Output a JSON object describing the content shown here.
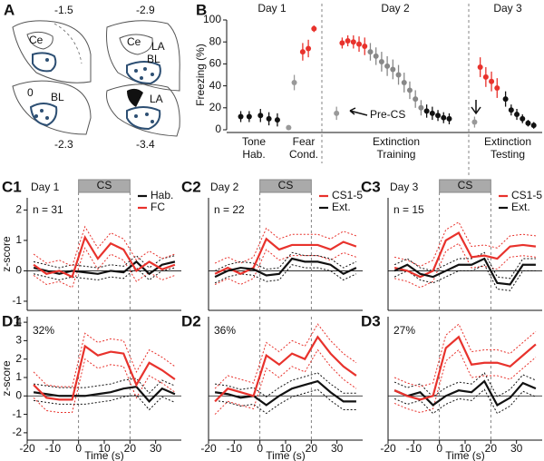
{
  "panel_a": {
    "label": "A",
    "labels": [
      "-1.5",
      "Ce",
      "-2.9",
      "Ce",
      "LA",
      "BL",
      "0",
      "BL",
      "-2.3",
      "LA",
      "-3.4"
    ]
  },
  "chart_data": [
    {
      "type": "errorbar",
      "label": "B",
      "ylabel": "Freezing (%)",
      "ylim": [
        0,
        100
      ],
      "yticks": [
        0,
        20,
        40,
        60,
        80,
        100
      ],
      "xlim": [
        0,
        56
      ],
      "annotations": [
        "Day 1",
        "Day 2",
        "Day 3",
        "Tone",
        "Hab.",
        "Fear",
        "Cond.",
        "Extinction",
        "Training",
        "Extinction",
        "Testing",
        "Pre-CS"
      ],
      "series": [
        {
          "color": "#111111",
          "x": [
            2.5,
            4,
            6,
            7.5,
            9
          ],
          "values": [
            12,
            12,
            13,
            10,
            9
          ],
          "errors": [
            5,
            5,
            6,
            6,
            6
          ]
        },
        {
          "color": "#999999",
          "x": [
            11,
            12
          ],
          "values": [
            2,
            43
          ],
          "errors": [
            1,
            7
          ]
        },
        {
          "color": "#e8322c",
          "x": [
            13.5,
            14.5,
            15.5
          ],
          "values": [
            71,
            74,
            92
          ],
          "errors": [
            8,
            8,
            3
          ]
        },
        {
          "color": "#999999",
          "x": [
            19.5
          ],
          "values": [
            15
          ],
          "errors": [
            6
          ]
        },
        {
          "color": "#e8322c",
          "x": [
            20.5,
            21.5,
            22.5,
            23.5,
            24.5
          ],
          "values": [
            79,
            81,
            80,
            78,
            76
          ],
          "errors": [
            5,
            5,
            6,
            7,
            8
          ]
        },
        {
          "color": "#888888",
          "x": [
            25.5,
            26.5,
            27.5,
            28.5,
            29.5,
            30.5,
            31.5,
            32.5,
            33.5,
            34.5
          ],
          "values": [
            71,
            67,
            62,
            58,
            55,
            50,
            43,
            36,
            28,
            20
          ],
          "errors": [
            8,
            8,
            9,
            9,
            9,
            9,
            9,
            8,
            8,
            7
          ]
        },
        {
          "color": "#111111",
          "x": [
            35.5,
            36.5,
            37.5,
            38.5,
            39.5
          ],
          "values": [
            17,
            15,
            13,
            11,
            10
          ],
          "errors": [
            6,
            6,
            5,
            5,
            5
          ]
        },
        {
          "color": "#999999",
          "x": [
            44
          ],
          "values": [
            7
          ],
          "errors": [
            5
          ]
        },
        {
          "color": "#e8322c",
          "x": [
            45,
            46,
            47,
            48
          ],
          "values": [
            57,
            48,
            44,
            38
          ],
          "errors": [
            9,
            9,
            9,
            9
          ]
        },
        {
          "color": "#111111",
          "x": [
            49.5,
            50.5,
            51.5,
            52.5,
            53.5,
            54.5
          ],
          "values": [
            28,
            18,
            14,
            10,
            6,
            4
          ],
          "errors": [
            7,
            5,
            5,
            4,
            3,
            3
          ]
        }
      ]
    },
    {
      "type": "line",
      "label": "C1",
      "title": "Day 1",
      "annotation": "n = 31",
      "cs_label": "CS",
      "cs_window": [
        0,
        20
      ],
      "ylabel": "z-score",
      "xlim": [
        -20,
        40
      ],
      "ylim": [
        -1.3,
        2.4
      ],
      "yticks": [
        -1,
        0,
        1,
        2
      ],
      "zero_line": true,
      "x": [
        -17.5,
        -12.5,
        -7.5,
        -2.5,
        2.5,
        7.5,
        12.5,
        17.5,
        22.5,
        27.5,
        32.5,
        37.5
      ],
      "series": [
        {
          "name": "Hab.",
          "color": "#111111",
          "values": [
            0.1,
            0.0,
            -0.1,
            0.0,
            -0.05,
            -0.1,
            0.0,
            -0.05,
            0.3,
            -0.1,
            0.2,
            0.3
          ],
          "upper": [
            0.3,
            0.2,
            0.1,
            0.2,
            0.15,
            0.1,
            0.2,
            0.15,
            0.5,
            0.1,
            0.4,
            0.5
          ],
          "lower": [
            -0.1,
            -0.2,
            -0.3,
            -0.2,
            -0.25,
            -0.3,
            -0.2,
            -0.25,
            0.1,
            -0.3,
            0.0,
            0.1
          ]
        },
        {
          "name": "FC",
          "color": "#e8322c",
          "values": [
            0.2,
            -0.1,
            0.0,
            -0.2,
            1.1,
            0.4,
            0.9,
            0.7,
            0.0,
            0.3,
            0.05,
            0.2
          ],
          "upper": [
            0.55,
            0.25,
            0.35,
            0.15,
            1.45,
            0.75,
            1.25,
            1.05,
            0.35,
            0.65,
            0.4,
            0.55
          ],
          "lower": [
            -0.15,
            -0.45,
            -0.35,
            -0.55,
            0.75,
            0.05,
            0.55,
            0.35,
            -0.35,
            -0.05,
            -0.3,
            -0.15
          ]
        }
      ]
    },
    {
      "type": "line",
      "label": "C2",
      "title": "Day 2",
      "annotation": "n = 22",
      "cs_label": "CS",
      "cs_window": [
        0,
        20
      ],
      "xlim": [
        -20,
        40
      ],
      "ylim": [
        -1.3,
        2.4
      ],
      "zero_line": true,
      "x": [
        -17.5,
        -12.5,
        -7.5,
        -2.5,
        2.5,
        7.5,
        12.5,
        17.5,
        22.5,
        27.5,
        32.5,
        37.5
      ],
      "series": [
        {
          "name": "CS1-5",
          "color": "#e8322c",
          "values": [
            -0.1,
            0.1,
            -0.1,
            0.1,
            1.05,
            0.7,
            0.85,
            0.85,
            0.85,
            0.7,
            0.95,
            0.8
          ],
          "upper": [
            0.25,
            0.45,
            0.25,
            0.45,
            1.4,
            1.05,
            1.2,
            1.2,
            1.2,
            1.05,
            1.3,
            1.15
          ],
          "lower": [
            -0.45,
            -0.25,
            -0.45,
            -0.25,
            0.7,
            0.35,
            0.5,
            0.5,
            0.5,
            0.35,
            0.6,
            0.45
          ]
        },
        {
          "name": "Ext.",
          "color": "#111111",
          "values": [
            -0.2,
            0.0,
            0.1,
            0.05,
            -0.15,
            -0.1,
            0.4,
            0.3,
            0.3,
            0.2,
            -0.1,
            0.1
          ],
          "upper": [
            0.0,
            0.2,
            0.3,
            0.25,
            0.05,
            0.1,
            0.6,
            0.5,
            0.5,
            0.4,
            0.1,
            0.3
          ],
          "lower": [
            -0.4,
            -0.2,
            -0.1,
            -0.15,
            -0.35,
            -0.3,
            0.2,
            0.1,
            0.1,
            0.0,
            -0.3,
            -0.1
          ]
        }
      ]
    },
    {
      "type": "line",
      "label": "C3",
      "title": "Day 3",
      "annotation": "n = 15",
      "cs_label": "CS",
      "cs_window": [
        0,
        20
      ],
      "xlim": [
        -20,
        40
      ],
      "ylim": [
        -1.3,
        2.4
      ],
      "zero_line": true,
      "x": [
        -17.5,
        -12.5,
        -7.5,
        -2.5,
        2.5,
        7.5,
        12.5,
        17.5,
        22.5,
        27.5,
        32.5,
        37.5
      ],
      "series": [
        {
          "name": "CS1-5",
          "color": "#e8322c",
          "values": [
            0.1,
            0.0,
            -0.2,
            0.0,
            1.0,
            1.25,
            0.45,
            0.5,
            0.4,
            0.8,
            0.85,
            0.8
          ],
          "upper": [
            0.45,
            0.35,
            0.15,
            0.35,
            1.35,
            1.6,
            0.8,
            0.85,
            0.75,
            1.15,
            1.2,
            1.15
          ],
          "lower": [
            -0.25,
            -0.35,
            -0.55,
            -0.35,
            0.65,
            0.9,
            0.1,
            0.15,
            0.05,
            0.45,
            0.5,
            0.45
          ]
        },
        {
          "name": "Ext.",
          "color": "#111111",
          "values": [
            0.0,
            0.2,
            -0.1,
            -0.2,
            0.0,
            0.2,
            0.2,
            0.4,
            -0.4,
            -0.45,
            0.2,
            0.2
          ],
          "upper": [
            0.2,
            0.4,
            0.1,
            0.0,
            0.2,
            0.4,
            0.4,
            0.6,
            -0.2,
            -0.25,
            0.4,
            0.4
          ],
          "lower": [
            -0.2,
            0.0,
            -0.3,
            -0.4,
            -0.2,
            0.0,
            0.0,
            0.2,
            -0.6,
            -0.65,
            0.0,
            0.0
          ]
        }
      ]
    },
    {
      "type": "line",
      "label": "D1",
      "annotation": "32%",
      "cs_window": [
        0,
        20
      ],
      "ylabel": "z-score",
      "xlabel": "Time (s)",
      "xlim": [
        -20,
        40
      ],
      "xticks": [
        -20,
        -10,
        0,
        10,
        20,
        30
      ],
      "ylim": [
        -2.4,
        4.3
      ],
      "yticks": [
        -2,
        -1,
        0,
        1,
        2,
        3,
        4
      ],
      "zero_line": true,
      "x": [
        -17.5,
        -12.5,
        -7.5,
        -2.5,
        2.5,
        7.5,
        12.5,
        17.5,
        22.5,
        27.5,
        32.5,
        37.5
      ],
      "series": [
        {
          "color": "#111111",
          "values": [
            0.2,
            0.1,
            0.0,
            0.0,
            0.0,
            0.1,
            0.2,
            0.4,
            0.5,
            -0.3,
            0.4,
            0.1
          ],
          "upper": [
            0.65,
            0.55,
            0.45,
            0.45,
            0.45,
            0.55,
            0.65,
            0.85,
            0.95,
            0.15,
            0.85,
            0.55
          ],
          "lower": [
            -0.25,
            -0.35,
            -0.45,
            -0.45,
            -0.45,
            -0.35,
            -0.25,
            -0.05,
            0.05,
            -0.75,
            -0.05,
            -0.35
          ]
        },
        {
          "color": "#e8322c",
          "values": [
            0.6,
            -0.1,
            -0.2,
            -0.2,
            2.7,
            2.2,
            2.4,
            2.3,
            0.6,
            1.8,
            1.4,
            0.9
          ],
          "upper": [
            1.3,
            0.6,
            0.5,
            0.5,
            3.4,
            2.9,
            3.1,
            3.0,
            1.3,
            2.5,
            2.1,
            1.6
          ],
          "lower": [
            -0.1,
            -0.8,
            -0.9,
            -0.9,
            2.0,
            1.5,
            1.7,
            1.6,
            -0.1,
            1.1,
            0.7,
            0.2
          ]
        }
      ]
    },
    {
      "type": "line",
      "label": "D2",
      "annotation": "36%",
      "cs_window": [
        0,
        20
      ],
      "xlabel": "Time (s)",
      "xlim": [
        -20,
        40
      ],
      "xticks": [
        -20,
        -10,
        0,
        10,
        20,
        30
      ],
      "ylim": [
        -2.4,
        4.3
      ],
      "zero_line": true,
      "x": [
        -17.5,
        -12.5,
        -7.5,
        -2.5,
        2.5,
        7.5,
        12.5,
        17.5,
        22.5,
        27.5,
        32.5,
        37.5
      ],
      "series": [
        {
          "color": "#111111",
          "values": [
            0.2,
            0.1,
            -0.1,
            0.0,
            -0.5,
            0.0,
            0.4,
            0.6,
            0.8,
            0.2,
            -0.3,
            -0.3
          ],
          "upper": [
            0.65,
            0.55,
            0.35,
            0.45,
            -0.05,
            0.45,
            0.85,
            1.05,
            1.25,
            0.65,
            0.15,
            0.15
          ],
          "lower": [
            -0.25,
            -0.35,
            -0.55,
            -0.45,
            -0.95,
            -0.45,
            -0.05,
            0.15,
            0.35,
            -0.25,
            -0.75,
            -0.75
          ]
        },
        {
          "color": "#e8322c",
          "values": [
            -0.3,
            0.4,
            0.2,
            0.0,
            2.2,
            1.7,
            2.3,
            2.0,
            3.2,
            2.3,
            1.6,
            1.1
          ],
          "upper": [
            0.4,
            1.1,
            0.9,
            0.7,
            2.9,
            2.4,
            3.0,
            2.7,
            3.9,
            3.0,
            2.3,
            1.8
          ],
          "lower": [
            -1.0,
            -0.3,
            -0.5,
            -0.7,
            1.5,
            1.0,
            1.6,
            1.3,
            2.5,
            1.6,
            0.9,
            0.4
          ]
        }
      ]
    },
    {
      "type": "line",
      "label": "D3",
      "annotation": "27%",
      "cs_window": [
        0,
        20
      ],
      "xlabel": "Time (s)",
      "xlim": [
        -20,
        40
      ],
      "xticks": [
        -20,
        -10,
        0,
        10,
        20,
        30
      ],
      "ylim": [
        -2.4,
        4.3
      ],
      "zero_line": true,
      "x": [
        -17.5,
        -12.5,
        -7.5,
        -2.5,
        2.5,
        7.5,
        12.5,
        17.5,
        22.5,
        27.5,
        32.5,
        37.5
      ],
      "series": [
        {
          "color": "#111111",
          "values": [
            0.3,
            0.0,
            0.2,
            -0.5,
            0.0,
            0.3,
            0.2,
            0.8,
            -0.5,
            -0.1,
            0.7,
            0.4
          ],
          "upper": [
            0.75,
            0.45,
            0.65,
            -0.05,
            0.45,
            0.75,
            0.65,
            1.25,
            -0.05,
            0.35,
            1.15,
            0.85
          ],
          "lower": [
            -0.15,
            -0.45,
            -0.25,
            -0.95,
            -0.45,
            -0.15,
            -0.25,
            0.35,
            -0.95,
            -0.55,
            0.25,
            -0.05
          ]
        },
        {
          "color": "#e8322c",
          "values": [
            0.3,
            0.0,
            -0.2,
            0.0,
            2.6,
            3.2,
            1.7,
            1.8,
            1.8,
            1.6,
            2.2,
            2.8
          ],
          "upper": [
            1.0,
            0.7,
            0.5,
            0.7,
            3.3,
            3.9,
            2.4,
            2.5,
            2.5,
            2.3,
            2.9,
            3.5
          ],
          "lower": [
            -0.4,
            -0.7,
            -0.9,
            -0.7,
            1.9,
            2.5,
            1.0,
            1.1,
            1.1,
            0.9,
            1.5,
            2.1
          ]
        }
      ]
    }
  ]
}
